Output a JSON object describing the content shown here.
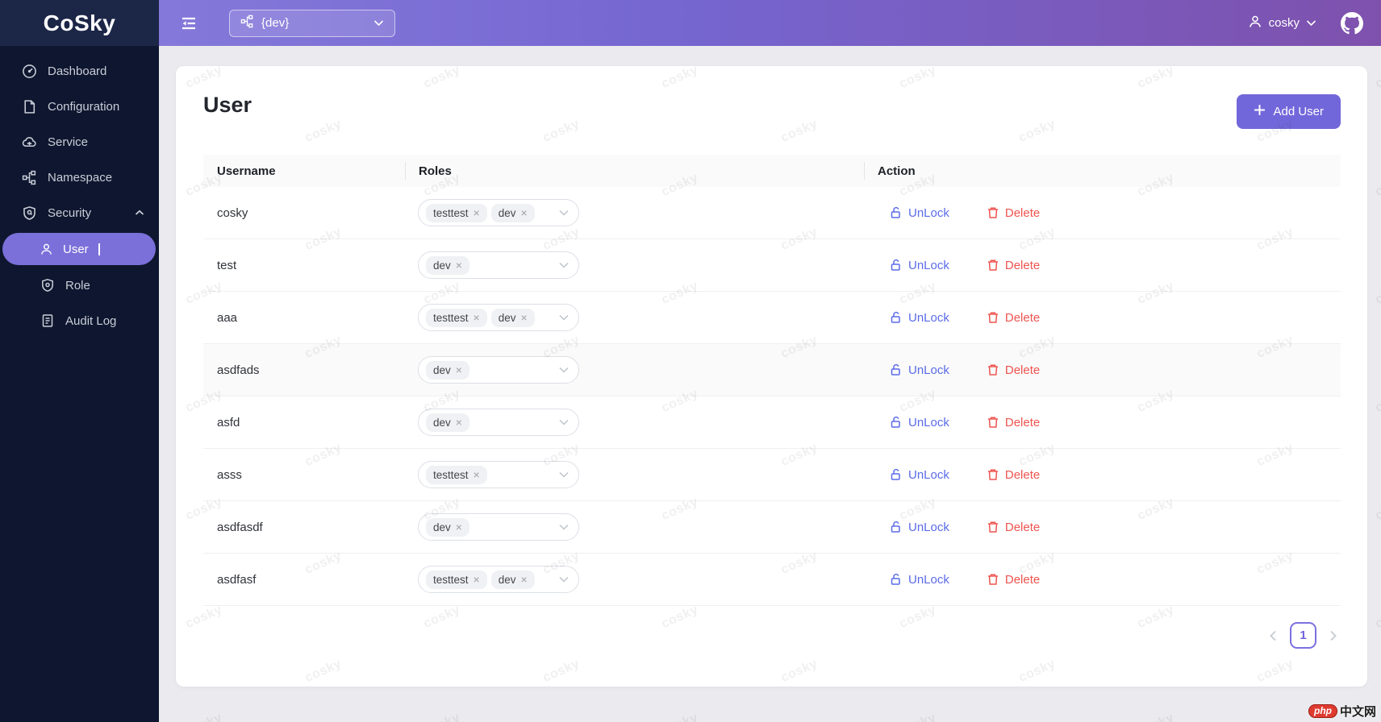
{
  "app": {
    "logo": "CoSky"
  },
  "sidebar": {
    "items": [
      {
        "label": "Dashboard",
        "icon": "dashboard-icon"
      },
      {
        "label": "Configuration",
        "icon": "file-icon"
      },
      {
        "label": "Service",
        "icon": "cloud-icon"
      },
      {
        "label": "Namespace",
        "icon": "namespace-icon"
      },
      {
        "label": "Security",
        "icon": "shield-icon",
        "expanded": true
      }
    ],
    "security_children": [
      {
        "label": "User",
        "icon": "user-icon",
        "active": true
      },
      {
        "label": "Role",
        "icon": "role-icon"
      },
      {
        "label": "Audit Log",
        "icon": "audit-log-icon"
      }
    ]
  },
  "topbar": {
    "namespace_select": "{dev}",
    "username": "cosky"
  },
  "page": {
    "title": "User",
    "add_button": "Add User"
  },
  "table": {
    "columns": [
      "Username",
      "Roles",
      "Action"
    ],
    "actions": {
      "unlock": "UnLock",
      "delete": "Delete"
    },
    "tag_close": "×",
    "rows": [
      {
        "username": "cosky",
        "roles": [
          "testtest",
          "dev"
        ],
        "hover": false
      },
      {
        "username": "test",
        "roles": [
          "dev"
        ],
        "hover": false
      },
      {
        "username": "aaa",
        "roles": [
          "testtest",
          "dev"
        ],
        "hover": false
      },
      {
        "username": "asdfads",
        "roles": [
          "dev"
        ],
        "hover": true
      },
      {
        "username": "asfd",
        "roles": [
          "dev"
        ],
        "hover": false
      },
      {
        "username": "asss",
        "roles": [
          "testtest"
        ],
        "hover": false
      },
      {
        "username": "asdfasdf",
        "roles": [
          "dev"
        ],
        "hover": false
      },
      {
        "username": "asdfasf",
        "roles": [
          "testtest",
          "dev"
        ],
        "hover": false
      }
    ]
  },
  "pagination": {
    "current": "1"
  },
  "watermark": {
    "text": "cosky"
  },
  "footer_badge": {
    "php": "php",
    "cn": "中文网"
  },
  "colors": {
    "sidebar_bg": "#0e172f",
    "sidebar_logo_bg": "#1c2647",
    "active_item": "#7b70d9",
    "header_gradient_start": "#8479da",
    "header_gradient_end": "#7e51ad",
    "primary_button": "#7267da",
    "unlock_link": "#5a6be8",
    "delete_link": "#ee544f",
    "pagination_active": "#7b70e0",
    "main_bg": "#ebebef"
  }
}
